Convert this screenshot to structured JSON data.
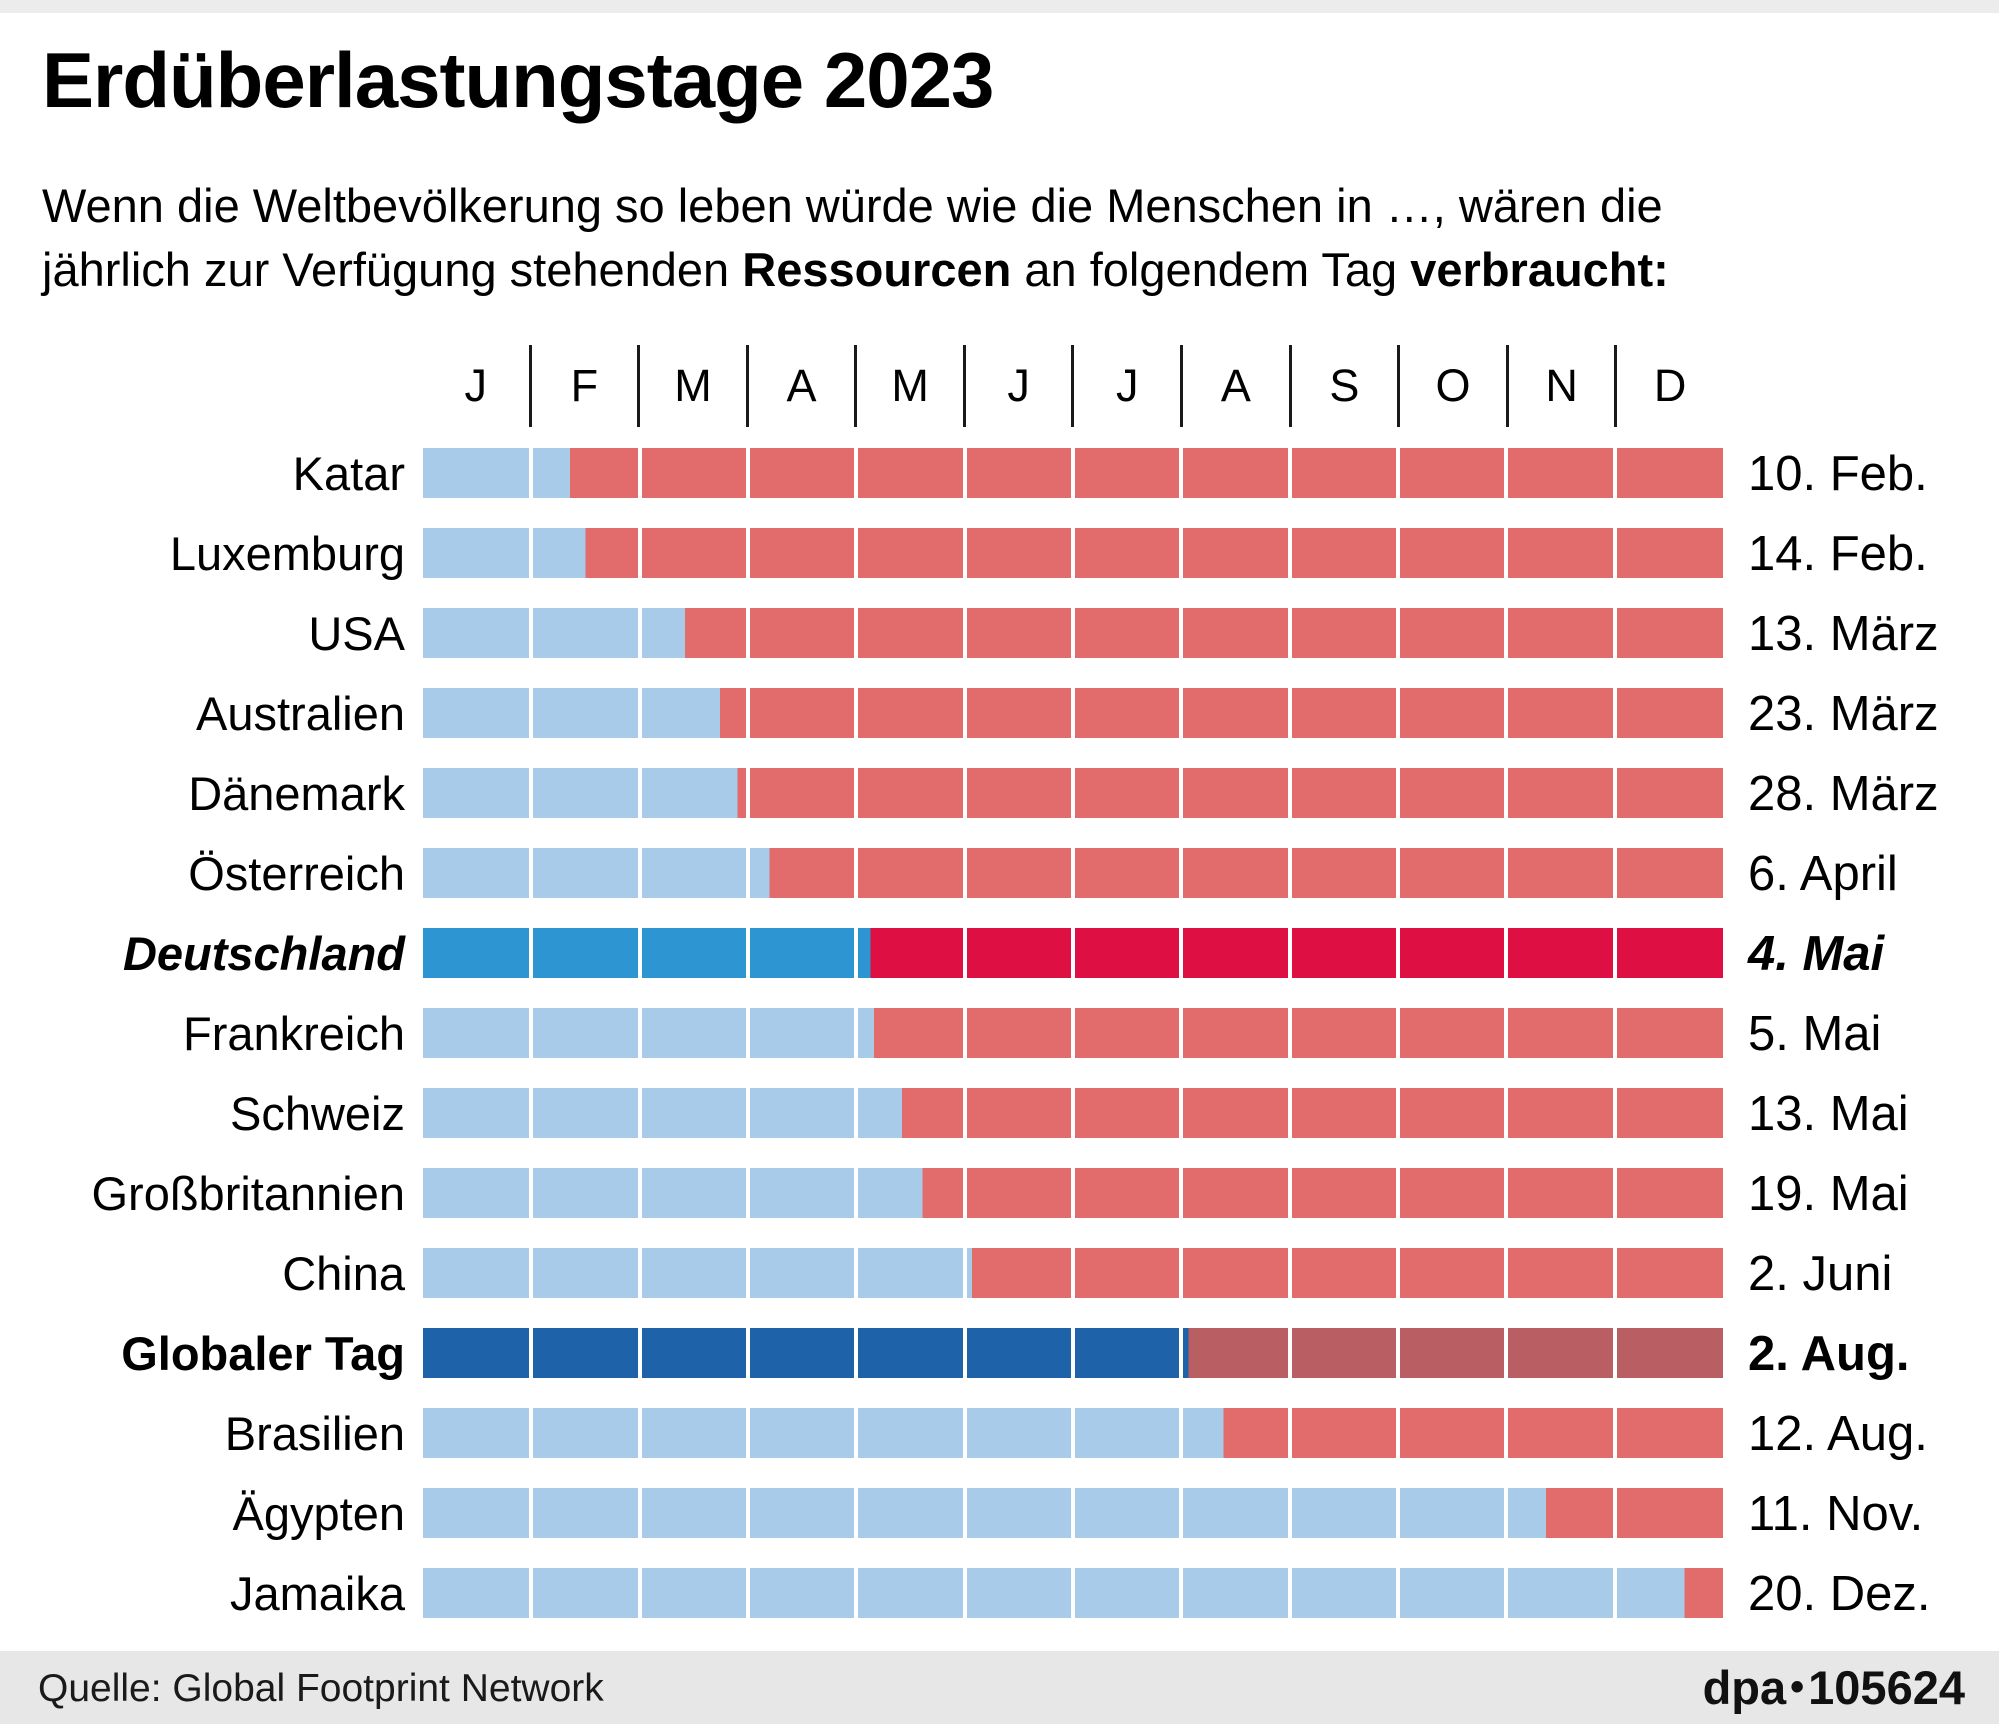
{
  "header": {
    "title": "Erdüberlastungstage 2023",
    "subtitle_part1": "Wenn die Weltbevölkerung so leben würde wie die Menschen in …, wären die",
    "subtitle_part2": "jährlich zur Verfügung stehenden ",
    "subtitle_bold1": "Ressourcen",
    "subtitle_part3": " an folgendem Tag ",
    "subtitle_bold2": "verbraucht",
    "subtitle_tail": ":"
  },
  "chart_data": {
    "type": "bar",
    "title": "Erdüberlastungstage 2023",
    "description": "Wenn die Weltbevölkerung so leben würde wie die Menschen in …, wären die jährlich zur Verfügung stehenden Ressourcen an folgendem Tag verbraucht:",
    "month_labels": [
      "J",
      "F",
      "M",
      "A",
      "M",
      "J",
      "J",
      "A",
      "S",
      "O",
      "N",
      "D"
    ],
    "segments_per_bar": 12,
    "legend_position": "none",
    "rows": [
      {
        "label": "Katar",
        "date": "10. Feb.",
        "percent_of_year": 11.31,
        "style": "normal"
      },
      {
        "label": "Luxemburg",
        "date": "14. Feb.",
        "percent_of_year": 12.5,
        "style": "normal"
      },
      {
        "label": "USA",
        "date": "13. März",
        "percent_of_year": 20.16,
        "style": "normal"
      },
      {
        "label": "Australien",
        "date": "23. März",
        "percent_of_year": 22.85,
        "style": "normal"
      },
      {
        "label": "Dänemark",
        "date": "28. März",
        "percent_of_year": 24.19,
        "style": "normal"
      },
      {
        "label": "Österreich",
        "date": "6. April",
        "percent_of_year": 26.67,
        "style": "normal"
      },
      {
        "label": "Deutschland",
        "date": "4. Mai",
        "percent_of_year": 34.41,
        "style": "germany"
      },
      {
        "label": "Frankreich",
        "date": "5. Mai",
        "percent_of_year": 34.68,
        "style": "normal"
      },
      {
        "label": "Schweiz",
        "date": "13. Mai",
        "percent_of_year": 36.83,
        "style": "normal"
      },
      {
        "label": "Großbritannien",
        "date": "19. Mai",
        "percent_of_year": 38.44,
        "style": "normal"
      },
      {
        "label": "China",
        "date": "2. Juni",
        "percent_of_year": 42.22,
        "style": "normal"
      },
      {
        "label": "Globaler Tag",
        "date": "2. Aug.",
        "percent_of_year": 58.87,
        "style": "global"
      },
      {
        "label": "Brasilien",
        "date": "12. Aug.",
        "percent_of_year": 61.56,
        "style": "normal"
      },
      {
        "label": "Ägypten",
        "date": "11. Nov.",
        "percent_of_year": 86.39,
        "style": "normal"
      },
      {
        "label": "Jamaika",
        "date": "20. Dez.",
        "percent_of_year": 97.04,
        "style": "normal"
      }
    ],
    "palette": {
      "normal_before": "#A7CBE9",
      "normal_after": "#E26B6C",
      "germany_before": "#2C95D2",
      "germany_after": "#DE1043",
      "global_before": "#1E62A9",
      "global_after": "#B95F64",
      "divider": "#FFFFFF",
      "top_strip": "#ECECEC",
      "footer_bg": "#E7E7E7",
      "text": "#000000"
    }
  },
  "footer": {
    "source": "Quelle: Global Footprint Network",
    "brand": "dpa",
    "bullet": "•",
    "id": "105624"
  }
}
